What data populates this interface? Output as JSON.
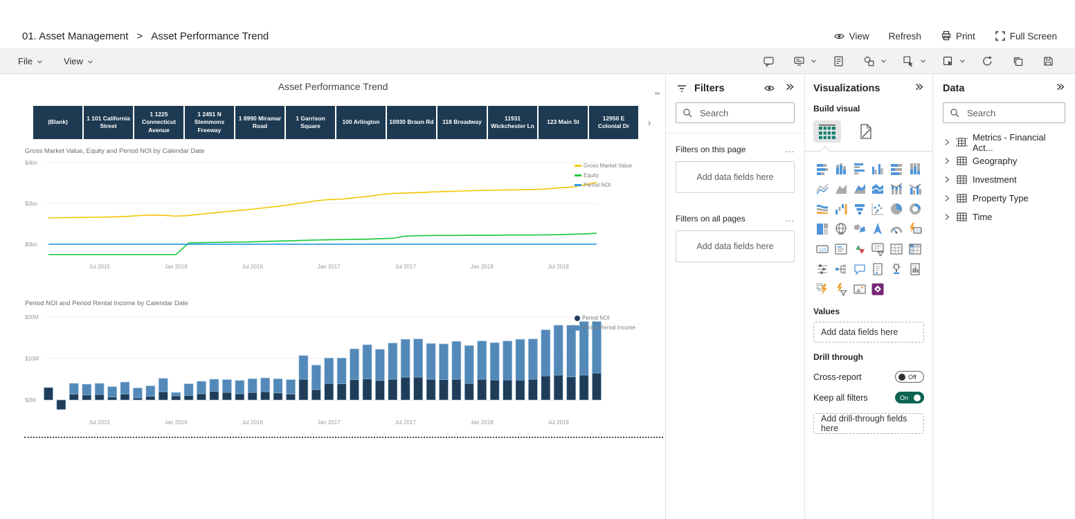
{
  "header": {
    "breadcrumb": {
      "root": "01. Asset Management",
      "separator": ">",
      "current": "Asset Performance Trend"
    },
    "actions": [
      {
        "icon": "eye-icon",
        "label": "View"
      },
      {
        "icon": null,
        "label": "Refresh"
      },
      {
        "icon": "printer-icon",
        "label": "Print"
      },
      {
        "icon": "fullscreen-icon",
        "label": "Full Screen"
      }
    ]
  },
  "menubar": {
    "menus": [
      {
        "label": "File"
      },
      {
        "label": "View"
      }
    ],
    "icons": [
      {
        "name": "comment-icon",
        "dropdown": false
      },
      {
        "name": "presenter-mode-icon",
        "dropdown": true
      },
      {
        "name": "notes-icon",
        "dropdown": false
      },
      {
        "name": "shapes-icon",
        "dropdown": true
      },
      {
        "name": "selection-icon",
        "dropdown": true
      },
      {
        "name": "bookmark-icon",
        "dropdown": true
      },
      {
        "name": "refresh-visuals-icon",
        "dropdown": false
      },
      {
        "name": "duplicate-page-icon",
        "dropdown": false
      },
      {
        "name": "save-icon",
        "dropdown": false
      }
    ]
  },
  "canvas": {
    "title": "Asset Performance Trend",
    "tiles": [
      "(Blank)",
      "1 101 California Street",
      "1 1225 Connecticut Avenue",
      "1 2451 N Stemmons Freeway",
      "1 8990 Miramar Road",
      "1 Garrison Square",
      "100 Arlington",
      "10930 Braun Rd",
      "118 Broadway",
      "11931 Wickchester Ln",
      "123 Main St",
      "12950 E Colonial Dr"
    ],
    "tile_color": "#1e3a52",
    "next_arrow": "›"
  },
  "chart_data": [
    {
      "type": "line",
      "title": "Gross Market Value, Equity and Period NOI by Calendar Date",
      "x": [
        "Mar 2015",
        "Apr 2015",
        "May 2015",
        "Jun 2015",
        "Jul 2015",
        "Aug 2015",
        "Sep 2015",
        "Oct 2015",
        "Nov 2015",
        "Dec 2015",
        "Jan 2016",
        "Feb 2016",
        "Mar 2016",
        "Apr 2016",
        "May 2016",
        "Jun 2016",
        "Jul 2016",
        "Aug 2016",
        "Sep 2016",
        "Oct 2016",
        "Nov 2016",
        "Dec 2016",
        "Jan 2017",
        "Feb 2017",
        "Mar 2017",
        "Apr 2017",
        "May 2017",
        "Jun 2017",
        "Jul 2017",
        "Aug 2017",
        "Sep 2017",
        "Oct 2017",
        "Nov 2017",
        "Dec 2017",
        "Jan 2018",
        "Feb 2018",
        "Mar 2018",
        "Apr 2018",
        "May 2018",
        "Jun 2018",
        "Jul 2018",
        "Aug 2018",
        "Sep 2018",
        "Oct 2018"
      ],
      "x_ticks": [
        {
          "label": "Jul 2015",
          "index": 4
        },
        {
          "label": "Jan 2016",
          "index": 10
        },
        {
          "label": "Jul 2016",
          "index": 16
        },
        {
          "label": "Jan 2017",
          "index": 22
        },
        {
          "label": "Jul 2017",
          "index": 28
        },
        {
          "label": "Jan 2018",
          "index": 34
        },
        {
          "label": "Jul 2018",
          "index": 40
        }
      ],
      "y_ticks": [
        {
          "label": "$4bn",
          "value": 4
        },
        {
          "label": "$2bn",
          "value": 2
        },
        {
          "label": "$0bn",
          "value": 0
        }
      ],
      "ylim": [
        -0.6,
        4.2
      ],
      "unit": "bn USD",
      "legend_position": "right-top",
      "series": [
        {
          "name": "Gross Market Value",
          "color": "#F2C80F",
          "values": [
            1.3,
            1.3,
            1.31,
            1.32,
            1.33,
            1.34,
            1.36,
            1.4,
            1.43,
            1.42,
            1.38,
            1.41,
            1.48,
            1.54,
            1.6,
            1.66,
            1.72,
            1.79,
            1.86,
            1.94,
            2.04,
            2.13,
            2.19,
            2.21,
            2.28,
            2.34,
            2.43,
            2.49,
            2.51,
            2.53,
            2.56,
            2.58,
            2.6,
            2.62,
            2.64,
            2.65,
            2.66,
            2.67,
            2.68,
            2.71,
            2.76,
            2.8,
            2.9,
            3.03
          ]
        },
        {
          "name": "Equity",
          "color": "#21C93F",
          "values": [
            -0.5,
            -0.5,
            -0.5,
            -0.5,
            -0.5,
            -0.5,
            -0.5,
            -0.5,
            -0.5,
            -0.5,
            -0.5,
            0.06,
            0.08,
            0.09,
            0.1,
            0.11,
            0.12,
            0.14,
            0.16,
            0.17,
            0.19,
            0.21,
            0.22,
            0.23,
            0.24,
            0.25,
            0.27,
            0.29,
            0.4,
            0.42,
            0.43,
            0.43,
            0.43,
            0.44,
            0.44,
            0.44,
            0.45,
            0.45,
            0.45,
            0.46,
            0.47,
            0.49,
            0.51,
            0.54
          ]
        },
        {
          "name": "Period NOI",
          "color": "#2E9BE8",
          "values": [
            0.005,
            0.005,
            0.005,
            0.005,
            0.005,
            0.005,
            0.005,
            0.005,
            0.005,
            0.005,
            0.005,
            0.005,
            0.005,
            0.005,
            0.005,
            0.005,
            0.005,
            0.005,
            0.005,
            0.005,
            0.005,
            0.005,
            0.005,
            0.005,
            0.005,
            0.005,
            0.005,
            0.005,
            0.005,
            0.005,
            0.005,
            0.005,
            0.005,
            0.005,
            0.005,
            0.005,
            0.005,
            0.005,
            0.005,
            0.005,
            0.005,
            0.005,
            0.005,
            0.005
          ]
        }
      ]
    },
    {
      "type": "bar",
      "stacked": true,
      "title": "Period NOI and Period Rental Income by Calendar Date",
      "x": [
        "Mar 2015",
        "Apr 2015",
        "May 2015",
        "Jun 2015",
        "Jul 2015",
        "Aug 2015",
        "Sep 2015",
        "Oct 2015",
        "Nov 2015",
        "Dec 2015",
        "Jan 2016",
        "Feb 2016",
        "Mar 2016",
        "Apr 2016",
        "May 2016",
        "Jun 2016",
        "Jul 2016",
        "Aug 2016",
        "Sep 2016",
        "Oct 2016",
        "Nov 2016",
        "Dec 2016",
        "Jan 2017",
        "Feb 2017",
        "Mar 2017",
        "Apr 2017",
        "May 2017",
        "Jun 2017",
        "Jul 2017",
        "Aug 2017",
        "Sep 2017",
        "Oct 2017",
        "Nov 2017",
        "Dec 2017",
        "Jan 2018",
        "Feb 2018",
        "Mar 2018",
        "Apr 2018",
        "May 2018",
        "Jun 2018",
        "Jul 2018",
        "Aug 2018",
        "Sep 2018",
        "Oct 2018"
      ],
      "x_ticks": [
        {
          "label": "Jul 2015",
          "index": 4
        },
        {
          "label": "Jan 2016",
          "index": 10
        },
        {
          "label": "Jul 2016",
          "index": 16
        },
        {
          "label": "Jan 2017",
          "index": 22
        },
        {
          "label": "Jul 2017",
          "index": 28
        },
        {
          "label": "Jan 2018",
          "index": 34
        },
        {
          "label": "Jul 2018",
          "index": 40
        }
      ],
      "y_ticks": [
        {
          "label": "$20M",
          "value": 20
        },
        {
          "label": "$10M",
          "value": 10
        },
        {
          "label": "$0M",
          "value": 0
        }
      ],
      "ylim": [
        -3,
        20
      ],
      "unit": "M USD",
      "legend_position": "right-top",
      "series": [
        {
          "name": "Period NOI",
          "color": "#1f3c59",
          "values": [
            3.0,
            -2.3,
            1.4,
            1.2,
            1.3,
            0.7,
            1.4,
            0.5,
            0.9,
            2.0,
            1.0,
            1.1,
            1.5,
            2.1,
            1.8,
            1.5,
            1.8,
            2.0,
            1.7,
            1.4,
            5.0,
            2.5,
            4.0,
            3.9,
            4.9,
            5.1,
            4.7,
            5.0,
            5.5,
            5.5,
            5.0,
            4.9,
            5.0,
            4.0,
            5.0,
            4.8,
            4.8,
            4.8,
            5.0,
            5.8,
            6.0,
            5.6,
            6.0,
            6.5
          ]
        },
        {
          "name": "Period Rental Income",
          "color": "#5389b8",
          "values": [
            0,
            0,
            2.6,
            2.6,
            2.7,
            2.5,
            2.9,
            2.4,
            2.5,
            3.2,
            0.8,
            2.8,
            3.0,
            2.9,
            3.1,
            3.2,
            3.3,
            3.3,
            3.4,
            3.5,
            5.7,
            5.9,
            6.1,
            6.2,
            7.4,
            8.2,
            7.5,
            8.7,
            9.1,
            9.2,
            8.6,
            8.6,
            9.1,
            9.1,
            9.2,
            9.0,
            9.4,
            9.8,
            9.7,
            11.1,
            12.0,
            12.4,
            12.9,
            12.4
          ]
        }
      ]
    }
  ],
  "filters_pane": {
    "title": "Filters",
    "search_placeholder": "Search",
    "more_options": "...",
    "sections": [
      {
        "label": "Filters on this page",
        "drop_label": "Add data fields here"
      },
      {
        "label": "Filters on all pages",
        "drop_label": "Add data fields here"
      }
    ]
  },
  "viz_pane": {
    "title": "Visualizations",
    "build_label": "Build visual",
    "values_label": "Values",
    "values_drop": "Add data fields here",
    "drill_label": "Drill through",
    "cross_report_label": "Cross-report",
    "cross_report_state": "Off",
    "keep_filters_label": "Keep all filters",
    "keep_filters_state": "On",
    "toggle_on_color": "#0b6350",
    "drill_drop": "Add drill-through fields here",
    "gallery_icons": [
      "stacked-bar-chart",
      "stacked-column-chart",
      "clustered-bar-chart",
      "clustered-column-chart",
      "100-stacked-bar-chart",
      "100-stacked-column-chart",
      "line-chart",
      "area-chart",
      "stacked-area-chart",
      "100-stacked-area-chart",
      "line-and-stacked-column-chart",
      "line-and-clustered-column-chart",
      "ribbon-chart",
      "waterfall-chart",
      "funnel-chart",
      "scatter-chart",
      "pie-chart",
      "donut-chart",
      "treemap",
      "map",
      "filled-map",
      "azure-map",
      "gauge",
      "card-new",
      "card",
      "multi-row-card",
      "kpi",
      "slicer-new",
      "table",
      "matrix",
      "slicer",
      "decomposition-tree",
      "qa-visual",
      "smart-narrative",
      "metrics",
      "paginated-report",
      "power-automate",
      "power-automate-filter",
      "image",
      "power-apps"
    ]
  },
  "data_pane": {
    "title": "Data",
    "search_placeholder": "Search",
    "tables": [
      {
        "icon": "measure-table-icon",
        "label": "Metrics - Financial Act..."
      },
      {
        "icon": "table-icon",
        "label": "Geography"
      },
      {
        "icon": "table-icon",
        "label": "Investment"
      },
      {
        "icon": "table-icon",
        "label": "Property Type"
      },
      {
        "icon": "table-icon",
        "label": "Time"
      }
    ]
  }
}
